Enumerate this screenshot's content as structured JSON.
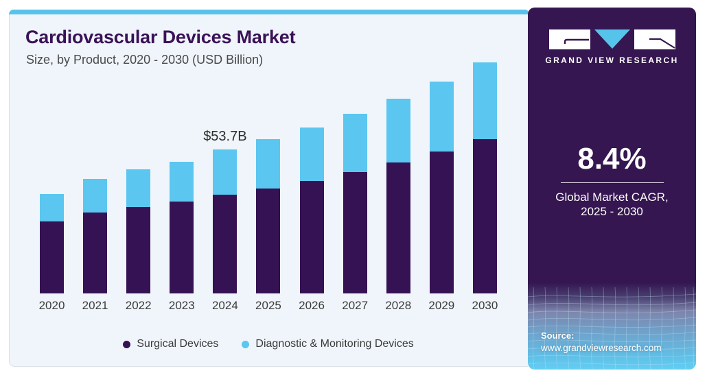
{
  "card": {
    "title": "Cardiovascular Devices Market",
    "subtitle": "Size, by Product, 2020 - 2030 (USD Billion)"
  },
  "colors": {
    "accent_bar": "#56C3EA",
    "card_background": "#EFF5FA",
    "sidebar_background": "#351650",
    "surgical_purple": "#351253",
    "diagnostic_blue": "#5BC6F0"
  },
  "chart_data": {
    "type": "bar",
    "stacked": true,
    "title": "Cardiovascular Devices Market Size, by Product, 2020 - 2030 (USD Billion)",
    "categories": [
      "2020",
      "2021",
      "2022",
      "2023",
      "2024",
      "2025",
      "2026",
      "2027",
      "2028",
      "2029",
      "2030"
    ],
    "series": [
      {
        "name": "Surgical Devices",
        "color": "#351253",
        "values": [
          26.7,
          30.1,
          32.1,
          34.2,
          36.7,
          39.0,
          41.9,
          45.2,
          48.8,
          52.9,
          57.5
        ]
      },
      {
        "name": "Diagnostic & Monitoring Devices",
        "color": "#5BC6F0",
        "values": [
          10.3,
          12.6,
          14.1,
          14.9,
          17.0,
          18.5,
          19.8,
          21.6,
          23.6,
          25.9,
          28.5
        ]
      }
    ],
    "totals": [
      37.0,
      42.7,
      46.2,
      49.1,
      53.7,
      57.5,
      61.7,
      66.8,
      72.4,
      78.9,
      86.1
    ],
    "annotation": {
      "category": "2024",
      "label": "$53.7B"
    },
    "xlabel": "",
    "ylabel": "",
    "y_axis_shown": false,
    "grid": false,
    "legend_position": "bottom"
  },
  "sidebar": {
    "logo": {
      "brand": "GRAND VIEW RESEARCH",
      "triangle_color": "#56C3EA"
    },
    "stat": {
      "value": "8.4%",
      "label_line1": "Global Market CAGR,",
      "label_line2": "2025 - 2030"
    },
    "source": {
      "label": "Source:",
      "url": "www.grandviewresearch.com"
    }
  }
}
